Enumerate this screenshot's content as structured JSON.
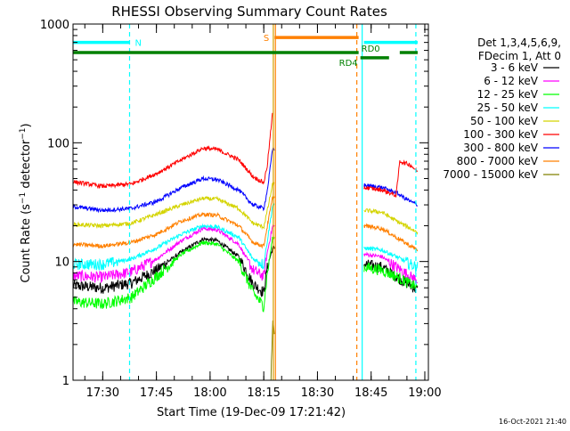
{
  "chart_data": {
    "type": "line",
    "title": "RHESSI Observing Summary Count Rates",
    "xlabel": "Start Time (19-Dec-09 17:21:42)",
    "ylabel": "Count Rate (s⁻¹ detector⁻¹)",
    "ylabel_parts": {
      "main": "Count Rate (s",
      "exp1": "−1",
      "mid": " detector",
      "exp2": "−1",
      "end": ")"
    },
    "footer": "16-Oct-2021 21:40",
    "y_scale": "log",
    "xlim": [
      "17:21:42",
      "19:01:00"
    ],
    "ylim": [
      1,
      1000
    ],
    "x_ticks": [
      "17:30",
      "17:45",
      "18:00",
      "18:15",
      "18:30",
      "18:45",
      "19:00"
    ],
    "y_ticks": [
      {
        "value": 1,
        "label": "1"
      },
      {
        "value": 10,
        "label": "10"
      },
      {
        "value": 100,
        "label": "100"
      },
      {
        "value": 1000,
        "label": "1000"
      }
    ],
    "legend": {
      "position": "right",
      "header": [
        "Det 1,3,4,5,6,9,",
        "FDecim 1, Att 0"
      ]
    },
    "series": [
      {
        "name": "3 - 6 keV",
        "color": "#000000",
        "points": [
          [
            "17:21:42",
            6.3
          ],
          [
            "17:30",
            6.0
          ],
          [
            "17:38",
            6.6
          ],
          [
            "17:45",
            8.5
          ],
          [
            "17:52",
            12
          ],
          [
            "17:58",
            15.5
          ],
          [
            "18:02",
            15
          ],
          [
            "18:08",
            11
          ],
          [
            "18:12",
            6.5
          ],
          [
            "18:15",
            5.5
          ],
          [
            "18:16",
            9
          ],
          [
            "18:17:30",
            13
          ],
          [
            "18:43",
            9.5
          ],
          [
            "18:48",
            9.0
          ],
          [
            "18:52",
            7.5
          ],
          [
            "18:56",
            6.3
          ],
          [
            "18:58",
            5.8
          ]
        ]
      },
      {
        "name": "6 - 12 keV",
        "color": "#ff00ff",
        "points": [
          [
            "17:21:42",
            7.6
          ],
          [
            "17:30",
            7.4
          ],
          [
            "17:38",
            8.2
          ],
          [
            "17:45",
            10.5
          ],
          [
            "17:52",
            15
          ],
          [
            "17:58",
            19
          ],
          [
            "18:02",
            18.5
          ],
          [
            "18:08",
            14
          ],
          [
            "18:12",
            8.5
          ],
          [
            "18:15",
            7.5
          ],
          [
            "18:16",
            12
          ],
          [
            "18:17:30",
            20
          ],
          [
            "18:43",
            11.5
          ],
          [
            "18:48",
            11
          ],
          [
            "18:52",
            9
          ],
          [
            "18:56",
            7.5
          ],
          [
            "18:58",
            7
          ]
        ]
      },
      {
        "name": "12 - 25 keV",
        "color": "#00ff00",
        "points": [
          [
            "17:21:42",
            4.6
          ],
          [
            "17:30",
            4.4
          ],
          [
            "17:38",
            5.0
          ],
          [
            "17:45",
            7.5
          ],
          [
            "17:52",
            11.5
          ],
          [
            "17:58",
            14.5
          ],
          [
            "18:02",
            14
          ],
          [
            "18:08",
            10
          ],
          [
            "18:12",
            5.5
          ],
          [
            "18:15",
            4.2
          ],
          [
            "18:16",
            8
          ],
          [
            "18:17:30",
            16
          ],
          [
            "18:43",
            9
          ],
          [
            "18:48",
            8.5
          ],
          [
            "18:52",
            7.5
          ],
          [
            "18:56",
            6.5
          ],
          [
            "18:58",
            6
          ]
        ]
      },
      {
        "name": "25 - 50 keV",
        "color": "#00ffff",
        "points": [
          [
            "17:21:42",
            9.5
          ],
          [
            "17:30",
            9.5
          ],
          [
            "17:38",
            10.5
          ],
          [
            "17:45",
            13
          ],
          [
            "17:52",
            17
          ],
          [
            "17:58",
            20
          ],
          [
            "18:02",
            19.5
          ],
          [
            "18:08",
            16
          ],
          [
            "18:12",
            10.5
          ],
          [
            "18:15",
            9.5
          ],
          [
            "18:16",
            15
          ],
          [
            "18:17:30",
            30
          ],
          [
            "18:43",
            13
          ],
          [
            "18:48",
            12.5
          ],
          [
            "18:52",
            11
          ],
          [
            "18:56",
            9.5
          ],
          [
            "18:58",
            9
          ]
        ]
      },
      {
        "name": "50 - 100 keV",
        "color": "#d4d400",
        "points": [
          [
            "17:21:42",
            20.5
          ],
          [
            "17:30",
            20
          ],
          [
            "17:38",
            21
          ],
          [
            "17:45",
            25
          ],
          [
            "17:52",
            30
          ],
          [
            "17:58",
            34
          ],
          [
            "18:02",
            33.5
          ],
          [
            "18:08",
            28
          ],
          [
            "18:12",
            21
          ],
          [
            "18:15",
            19.5
          ],
          [
            "18:16",
            27
          ],
          [
            "18:17:30",
            45
          ],
          [
            "18:43",
            27
          ],
          [
            "18:48",
            26
          ],
          [
            "18:52",
            22
          ],
          [
            "18:56",
            19
          ],
          [
            "18:58",
            17.5
          ]
        ]
      },
      {
        "name": "100 - 300 keV",
        "color": "#ff0000",
        "points": [
          [
            "17:21:42",
            47
          ],
          [
            "17:30",
            43
          ],
          [
            "17:38",
            45
          ],
          [
            "17:45",
            55
          ],
          [
            "17:52",
            72
          ],
          [
            "17:58",
            90
          ],
          [
            "18:02",
            88
          ],
          [
            "18:08",
            72
          ],
          [
            "18:12",
            52
          ],
          [
            "18:15",
            46
          ],
          [
            "18:16",
            65
          ],
          [
            "18:17:30",
            185
          ]
        ]
      },
      {
        "name": "300 - 800 keV",
        "color": "#0000ff",
        "points": [
          [
            "17:21:42",
            29
          ],
          [
            "17:30",
            27
          ],
          [
            "17:38",
            28
          ],
          [
            "17:45",
            32
          ],
          [
            "17:52",
            42
          ],
          [
            "17:58",
            50
          ],
          [
            "18:02",
            49
          ],
          [
            "18:08",
            40
          ],
          [
            "18:12",
            30
          ],
          [
            "18:15",
            28
          ],
          [
            "18:16",
            40
          ],
          [
            "18:17:30",
            90
          ],
          [
            "18:43",
            44
          ],
          [
            "18:48",
            42
          ],
          [
            "18:52",
            38
          ],
          [
            "18:56",
            32
          ],
          [
            "18:58",
            30
          ]
        ]
      },
      {
        "name": "800 - 7000 keV",
        "color": "#ff8000",
        "points": [
          [
            "17:21:42",
            14
          ],
          [
            "17:30",
            13.5
          ],
          [
            "17:38",
            14.5
          ],
          [
            "17:45",
            17
          ],
          [
            "17:52",
            22
          ],
          [
            "17:58",
            25
          ],
          [
            "18:02",
            24.5
          ],
          [
            "18:08",
            20
          ],
          [
            "18:12",
            14.5
          ],
          [
            "18:15",
            13.5
          ],
          [
            "18:16",
            20
          ],
          [
            "18:17:30",
            35
          ],
          [
            "18:43",
            20
          ],
          [
            "18:48",
            19
          ],
          [
            "18:52",
            16
          ],
          [
            "18:56",
            13.5
          ],
          [
            "18:58",
            12.5
          ]
        ]
      },
      {
        "name": "7000 - 15000 keV",
        "color": "#808000",
        "points": [
          [
            "18:17",
            1.0
          ],
          [
            "18:17:30",
            3.0
          ],
          [
            "18:18",
            2.2
          ]
        ]
      }
    ],
    "series_extra": [
      {
        "series": "100 - 300 keV",
        "points": [
          [
            "18:43",
            42
          ],
          [
            "18:48",
            40
          ],
          [
            "18:52",
            36
          ],
          [
            "18:53",
            70
          ],
          [
            "18:56",
            65
          ],
          [
            "18:58",
            57
          ]
        ]
      }
    ],
    "state_bars": [
      {
        "label": "N",
        "color": "#00ffff",
        "segments": [
          [
            "17:21:42",
            "17:37:30"
          ],
          [
            "18:43",
            "18:58"
          ]
        ],
        "level": 700,
        "label_at": "17:37:30"
      },
      {
        "label": "S",
        "color": "#ff8000",
        "segments": [
          [
            "18:18",
            "18:41:30"
          ]
        ],
        "level": 770,
        "label_at": "18:18"
      },
      {
        "label": "RD0",
        "color": "#008000",
        "segments": [
          [
            "17:21:42",
            "18:41:30"
          ],
          [
            "18:53",
            "18:58"
          ]
        ],
        "level": 575,
        "label_at": "18:41:30"
      },
      {
        "label": "RD4",
        "color": "#008000",
        "segments": [
          [
            "18:42",
            "18:50"
          ]
        ],
        "level": 520,
        "label_at": "18:42"
      }
    ],
    "vertical_lines": [
      {
        "time": "17:37:30",
        "color": "#00ffff",
        "style": "dashed"
      },
      {
        "time": "18:17:40",
        "color": "#d4a000",
        "style": "solid"
      },
      {
        "time": "18:18:15",
        "color": "#ff8000",
        "style": "solid"
      },
      {
        "time": "18:41:00",
        "color": "#ff8000",
        "style": "dashed"
      },
      {
        "time": "18:42:30",
        "color": "#00ffff",
        "style": "solid"
      },
      {
        "time": "18:57:30",
        "color": "#00ffff",
        "style": "dashed"
      }
    ]
  }
}
